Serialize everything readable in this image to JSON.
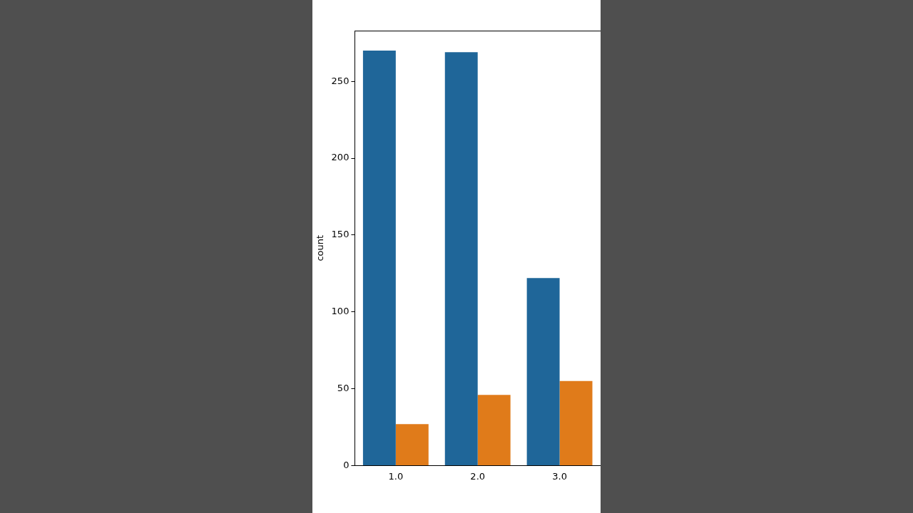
{
  "chart_data": {
    "type": "bar",
    "ylabel": "count",
    "categories": [
      "1.0",
      "2.0",
      "3.0"
    ],
    "series": [
      {
        "color": "#1f6699",
        "values": [
          270,
          269,
          122
        ]
      },
      {
        "color": "#e07b1a",
        "values": [
          27,
          46,
          55
        ]
      }
    ],
    "ylim": [
      0,
      283
    ],
    "yticks": [
      0,
      50,
      100,
      150,
      200,
      250
    ],
    "grid": false,
    "legend": false
  }
}
